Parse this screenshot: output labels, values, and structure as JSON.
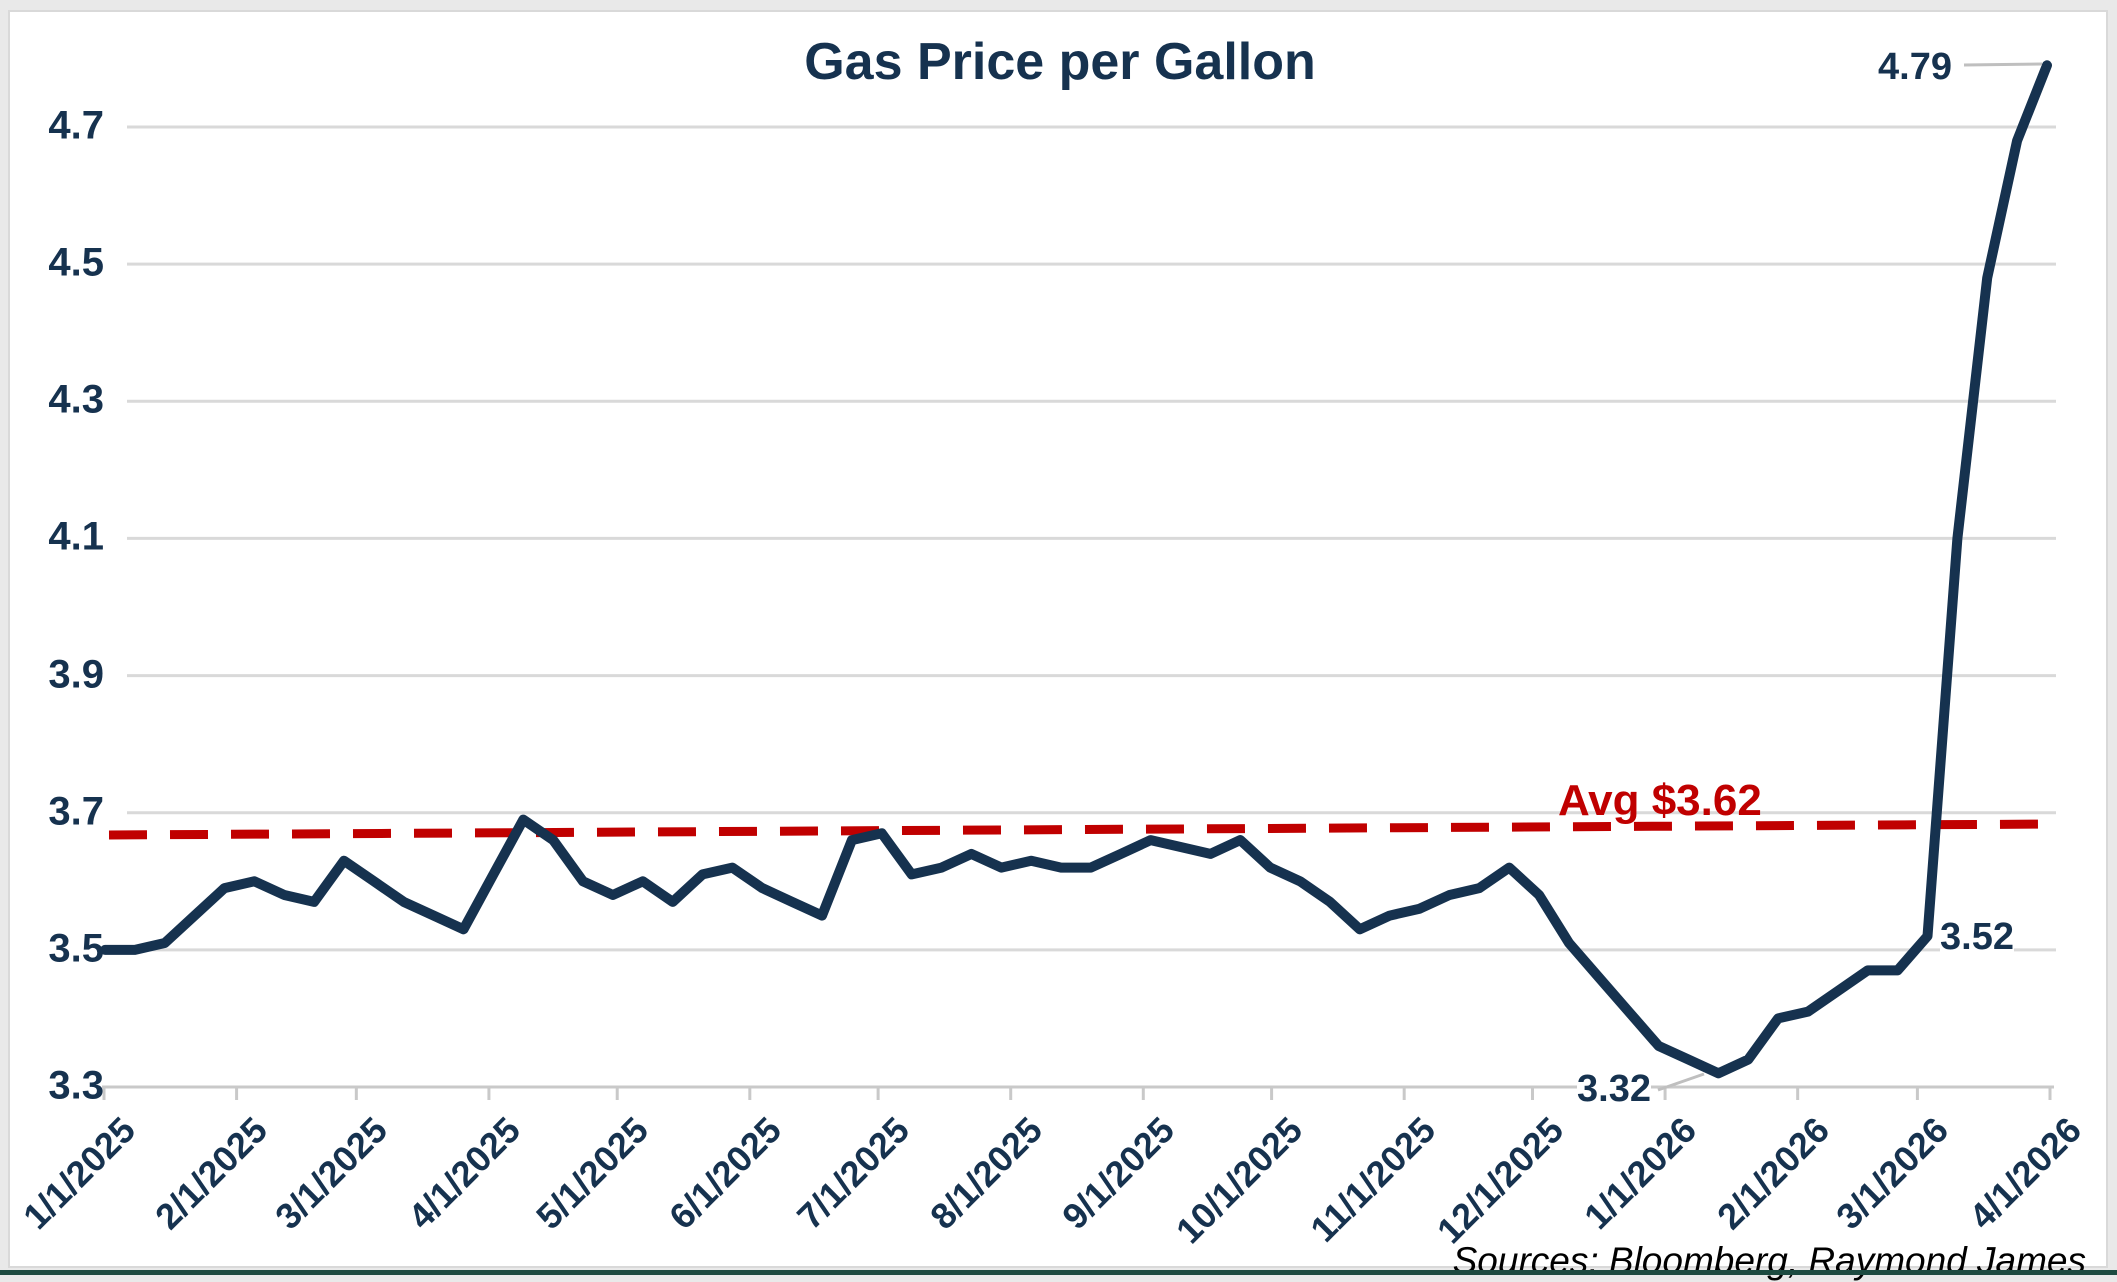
{
  "window": {
    "bottom_bar_color": "#1d4b41",
    "margin_color": "#e9e9e9"
  },
  "chart": {
    "title": "Gas Price per Gallon",
    "source_note": "Sources: Bloomberg, Raymond James",
    "colors": {
      "line": "#16324f",
      "avg_line": "#c00000",
      "grid": "#d9d9d9",
      "axis": "#c9c9c9",
      "callout": "#bfbfbf",
      "text": "#16324f",
      "source_text": "#000000",
      "background": "#ffffff"
    },
    "annotations": {
      "high": {
        "label": "4.79"
      },
      "pre_surge": {
        "label": "3.52"
      },
      "low": {
        "label": "3.32"
      },
      "average": {
        "label": "Avg $3.62"
      }
    }
  },
  "chart_data": {
    "type": "line",
    "title": "Gas Price per Gallon",
    "series_name": "Gas Price per Gallon (USD)",
    "x": [
      "1/1/2025",
      "1/8/2025",
      "1/15/2025",
      "1/22/2025",
      "1/29/2025",
      "2/5/2025",
      "2/12/2025",
      "2/19/2025",
      "2/26/2025",
      "3/5/2025",
      "3/12/2025",
      "3/19/2025",
      "3/26/2025",
      "4/2/2025",
      "4/9/2025",
      "4/16/2025",
      "4/23/2025",
      "4/30/2025",
      "5/7/2025",
      "5/14/2025",
      "5/21/2025",
      "5/28/2025",
      "6/4/2025",
      "6/11/2025",
      "6/18/2025",
      "6/25/2025",
      "7/2/2025",
      "7/9/2025",
      "7/16/2025",
      "7/23/2025",
      "7/30/2025",
      "8/6/2025",
      "8/13/2025",
      "8/20/2025",
      "8/27/2025",
      "9/3/2025",
      "9/10/2025",
      "9/17/2025",
      "9/24/2025",
      "10/1/2025",
      "10/8/2025",
      "10/15/2025",
      "10/22/2025",
      "10/29/2025",
      "11/5/2025",
      "11/12/2025",
      "11/19/2025",
      "11/26/2025",
      "12/3/2025",
      "12/10/2025",
      "12/17/2025",
      "12/24/2025",
      "12/31/2025",
      "1/7/2026",
      "1/14/2026",
      "1/21/2026",
      "1/28/2026",
      "2/4/2026",
      "2/11/2026",
      "2/18/2026",
      "2/25/2026",
      "3/4/2026",
      "3/11/2026",
      "3/18/2026",
      "3/25/2026",
      "4/1/2026"
    ],
    "values": [
      3.5,
      3.5,
      3.51,
      3.55,
      3.59,
      3.6,
      3.58,
      3.57,
      3.63,
      3.6,
      3.57,
      3.55,
      3.53,
      3.61,
      3.69,
      3.66,
      3.6,
      3.58,
      3.6,
      3.57,
      3.61,
      3.62,
      3.59,
      3.57,
      3.55,
      3.66,
      3.67,
      3.61,
      3.62,
      3.64,
      3.62,
      3.63,
      3.62,
      3.62,
      3.64,
      3.66,
      3.65,
      3.64,
      3.66,
      3.62,
      3.6,
      3.57,
      3.53,
      3.55,
      3.56,
      3.58,
      3.59,
      3.62,
      3.58,
      3.51,
      3.46,
      3.41,
      3.36,
      3.34,
      3.32,
      3.34,
      3.4,
      3.41,
      3.44,
      3.47,
      3.47,
      3.52,
      4.1,
      4.48,
      4.68,
      4.79
    ],
    "x_tick_labels": [
      "1/1/2025",
      "2/1/2025",
      "3/1/2025",
      "4/1/2025",
      "5/1/2025",
      "6/1/2025",
      "7/1/2025",
      "8/1/2025",
      "9/1/2025",
      "10/1/2025",
      "11/1/2025",
      "12/1/2025",
      "1/1/2026",
      "2/1/2026",
      "3/1/2026",
      "4/1/2026"
    ],
    "y_tick_labels": [
      "4.7",
      "4.5",
      "4.3",
      "4.1",
      "3.9",
      "3.7",
      "3.5",
      "3.3"
    ],
    "y_ticks": [
      4.7,
      4.5,
      4.3,
      4.1,
      3.9,
      3.7,
      3.5,
      3.3
    ],
    "ylim": [
      3.3,
      4.8
    ],
    "grid": "horizontal",
    "legend": "none",
    "average_line": {
      "value": 3.62,
      "label": "Avg $3.62",
      "style": "dashed",
      "color": "#c00000"
    },
    "point_annotations": [
      {
        "x": "4/1/2026",
        "value": 4.79,
        "label": "4.79"
      },
      {
        "x": "3/1/2026",
        "value": 3.52,
        "label": "3.52"
      },
      {
        "x": "1/14/2026",
        "value": 3.32,
        "label": "3.32"
      }
    ],
    "source": "Sources: Bloomberg, Raymond James"
  }
}
